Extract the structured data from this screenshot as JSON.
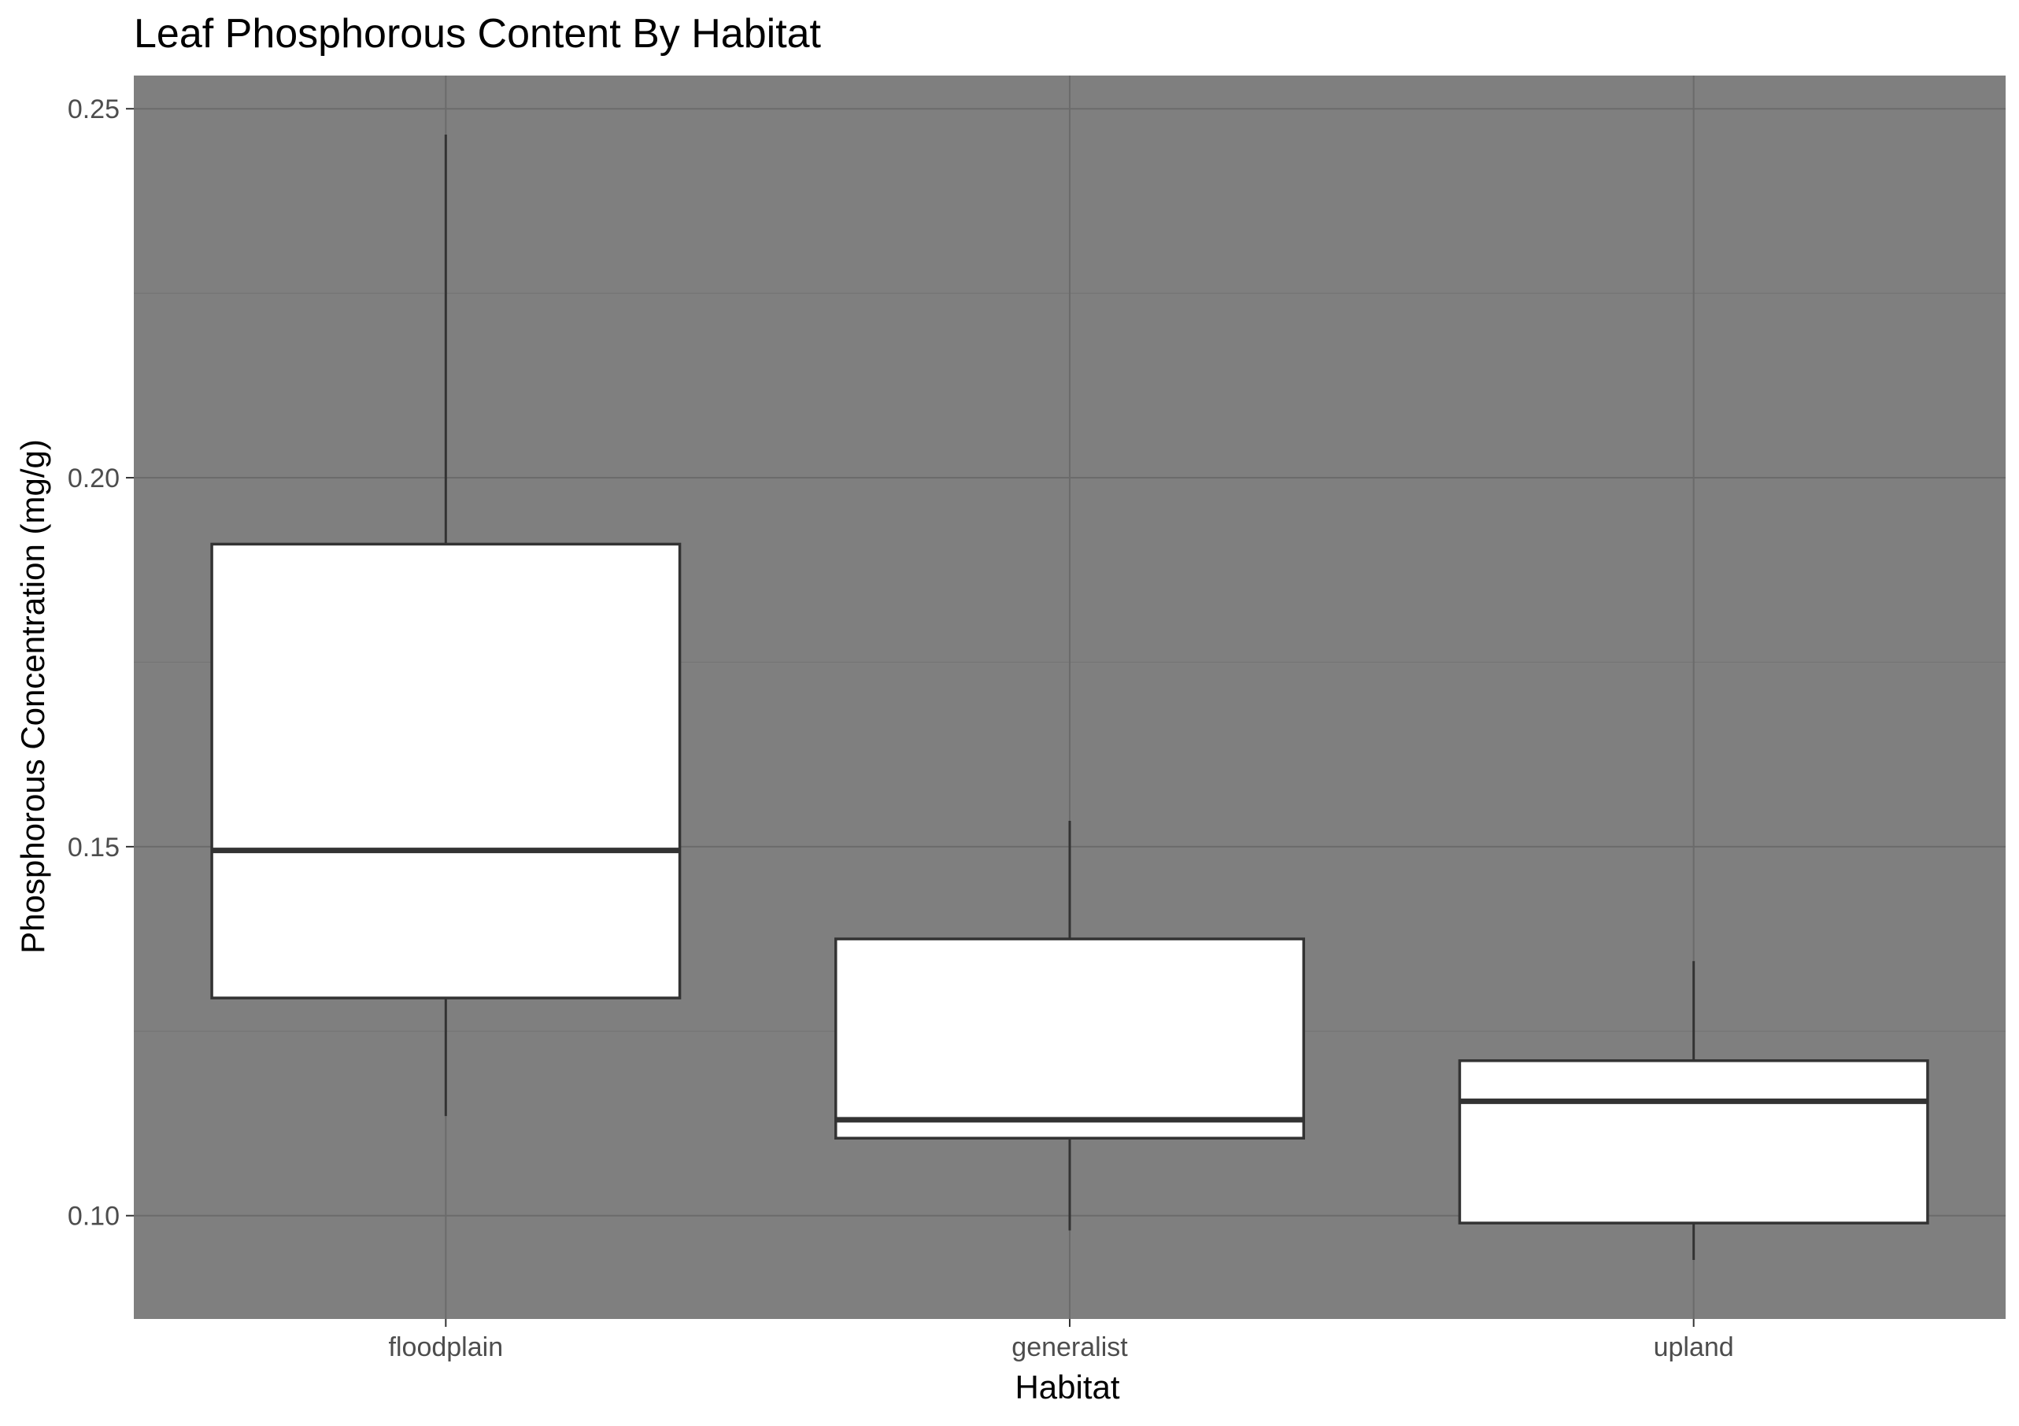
{
  "chart_data": {
    "type": "box",
    "title": "Leaf Phosphorous Content By Habitat",
    "xlabel": "Habitat",
    "ylabel": "Phosphorous Concentration (mg/g)",
    "categories": [
      "floodplain",
      "generalist",
      "upland"
    ],
    "ylim": [
      0.086,
      0.2545
    ],
    "yticks": [
      0.1,
      0.15,
      0.2,
      0.25
    ],
    "ytick_labels": [
      "0.10",
      "0.15",
      "0.20",
      "0.25"
    ],
    "grid": true,
    "legend": "none",
    "boxes": [
      {
        "category": "floodplain",
        "whisker_low": 0.1135,
        "q1": 0.1295,
        "median": 0.1495,
        "q3": 0.191,
        "whisker_high": 0.2465
      },
      {
        "category": "generalist",
        "whisker_low": 0.098,
        "q1": 0.1105,
        "median": 0.113,
        "q3": 0.1375,
        "whisker_high": 0.1535
      },
      {
        "category": "upland",
        "whisker_low": 0.094,
        "q1": 0.099,
        "median": 0.1155,
        "q3": 0.121,
        "whisker_high": 0.1345
      }
    ],
    "colors": {
      "panel_background": "#7f7f7f",
      "grid_major": "#6b6b6b",
      "grid_minor": "#747474",
      "box_fill": "#ffffff",
      "box_line": "#333333",
      "axis_text": "#4d4d4d",
      "title_text": "#000000"
    }
  }
}
